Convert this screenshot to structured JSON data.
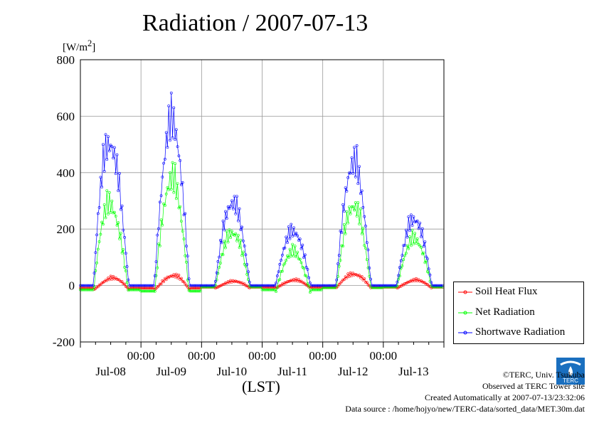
{
  "chart_data": {
    "type": "line",
    "title": "Radiation / 2007-07-13",
    "ylabel": "[W/m²]",
    "xlabel": "(LST)",
    "ylim": [
      -200,
      800
    ],
    "yticks": [
      -200,
      0,
      200,
      400,
      600,
      800
    ],
    "xlim_days": [
      0,
      6
    ],
    "xticks_time": [
      "00:00",
      "00:00",
      "00:00",
      "00:00",
      "00:00"
    ],
    "xticks_date": [
      "Jul-08",
      "Jul-09",
      "Jul-10",
      "Jul-11",
      "Jul-12",
      "Jul-13"
    ],
    "grid": true,
    "legend_position": "bottom-right",
    "series": [
      {
        "name": "Soil Heat Flux",
        "color": "#ff0000",
        "daily": [
          {
            "peak": 35,
            "night": -15,
            "center": 0.55
          },
          {
            "peak": 45,
            "night": -15,
            "center": 0.55
          },
          {
            "peak": 20,
            "night": -10,
            "center": 0.55
          },
          {
            "peak": 25,
            "night": -10,
            "center": 0.55
          },
          {
            "peak": 50,
            "night": -10,
            "center": 0.5
          },
          {
            "peak": 25,
            "night": -10,
            "center": 0.55
          }
        ]
      },
      {
        "name": "Net Radiation",
        "color": "#00ff00",
        "daily": [
          {
            "peak": 350,
            "night": -30,
            "center": 0.45
          },
          {
            "peak": 460,
            "night": -40,
            "center": 0.5
          },
          {
            "peak": 225,
            "night": -10,
            "center": 0.5
          },
          {
            "peak": 150,
            "night": -30,
            "center": 0.5
          },
          {
            "peak": 340,
            "night": -15,
            "center": 0.5
          },
          {
            "peak": 200,
            "night": -10,
            "center": 0.5
          }
        ]
      },
      {
        "name": "Shortwave Radiation",
        "color": "#0000ff",
        "daily": [
          {
            "peak": 600,
            "night": 0,
            "center": 0.45
          },
          {
            "peak": 695,
            "night": 0,
            "center": 0.5
          },
          {
            "peak": 350,
            "night": 0,
            "center": 0.5
          },
          {
            "peak": 230,
            "night": 0,
            "center": 0.5
          },
          {
            "peak": 520,
            "night": 0,
            "center": 0.5
          },
          {
            "peak": 280,
            "night": 0,
            "center": 0.5
          }
        ]
      }
    ]
  },
  "footer": {
    "copyright": "©TERC, Univ. Tsukuba",
    "observed": "Observed at TERC Tower site",
    "created": "Created Automatically at 2007-07-13/23:32:06",
    "source": "Data source : /home/hojyo/new/TERC-data/sorted_data/MET.30m.dat"
  },
  "logo": {
    "text": "TERC"
  }
}
